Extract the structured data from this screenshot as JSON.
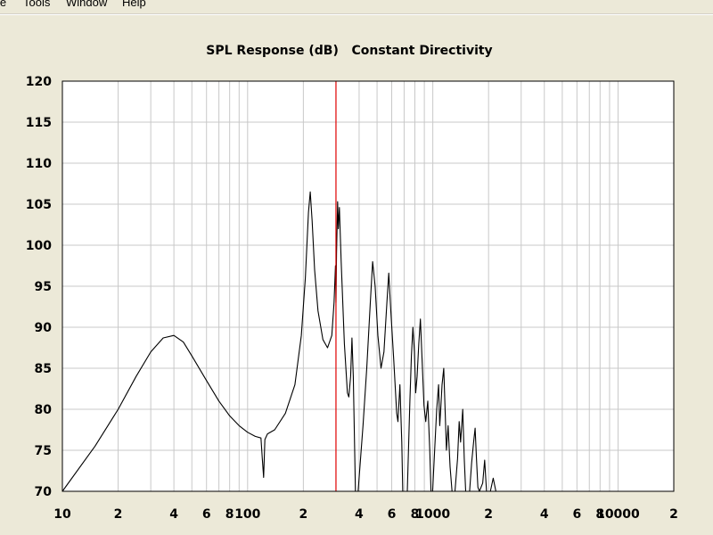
{
  "menu": {
    "items": [
      "le",
      "Tools",
      "Window",
      "Help"
    ]
  },
  "colors": {
    "background": "#ece9d8",
    "plot_background": "#ffffff",
    "grid": "#c8c8c8",
    "curve": "#000000",
    "marker": "#e00000"
  },
  "chart_data": {
    "type": "line",
    "title": "SPL Response (dB)   Constant Directivity",
    "xlabel": "",
    "ylabel": "",
    "x_scale": "log",
    "xlim": [
      10,
      20000
    ],
    "ylim": [
      70,
      120
    ],
    "grid": true,
    "yticks": [
      70,
      75,
      80,
      85,
      90,
      95,
      100,
      105,
      110,
      115,
      120
    ],
    "xtick_labels": [
      {
        "x": 10,
        "label": "10"
      },
      {
        "x": 20,
        "label": "2"
      },
      {
        "x": 40,
        "label": "4"
      },
      {
        "x": 60,
        "label": "6"
      },
      {
        "x": 80,
        "label": "8"
      },
      {
        "x": 100,
        "label": "100"
      },
      {
        "x": 200,
        "label": "2"
      },
      {
        "x": 400,
        "label": "4"
      },
      {
        "x": 600,
        "label": "6"
      },
      {
        "x": 800,
        "label": "8"
      },
      {
        "x": 1000,
        "label": "1000"
      },
      {
        "x": 2000,
        "label": "2"
      },
      {
        "x": 4000,
        "label": "4"
      },
      {
        "x": 6000,
        "label": "6"
      },
      {
        "x": 8000,
        "label": "8"
      },
      {
        "x": 10000,
        "label": "10000"
      },
      {
        "x": 20000,
        "label": "2"
      }
    ],
    "marker_x": 300,
    "series": [
      {
        "values": [
          [
            10,
            70
          ],
          [
            15,
            75.5
          ],
          [
            20,
            80
          ],
          [
            25,
            84
          ],
          [
            30,
            87
          ],
          [
            35,
            88.7
          ],
          [
            40,
            89
          ],
          [
            45,
            88.2
          ],
          [
            50,
            86.5
          ],
          [
            60,
            83.5
          ],
          [
            70,
            81
          ],
          [
            80,
            79.2
          ],
          [
            90,
            78
          ],
          [
            100,
            77.2
          ],
          [
            110,
            76.7
          ],
          [
            118,
            76.5
          ],
          [
            120,
            74
          ],
          [
            122,
            71.7
          ],
          [
            124,
            76.3
          ],
          [
            128,
            77
          ],
          [
            140,
            77.5
          ],
          [
            160,
            79.5
          ],
          [
            180,
            83
          ],
          [
            195,
            89
          ],
          [
            205,
            96
          ],
          [
            213,
            104
          ],
          [
            218,
            106.5
          ],
          [
            223,
            103
          ],
          [
            230,
            97
          ],
          [
            240,
            92
          ],
          [
            255,
            88.5
          ],
          [
            270,
            87.5
          ],
          [
            285,
            89
          ],
          [
            293,
            93
          ],
          [
            298,
            97.5
          ],
          [
            300,
            93
          ],
          [
            302,
            99
          ],
          [
            306,
            105.3
          ],
          [
            309,
            102
          ],
          [
            313,
            104.6
          ],
          [
            320,
            98
          ],
          [
            333,
            88
          ],
          [
            346,
            82
          ],
          [
            352,
            81.5
          ],
          [
            360,
            84
          ],
          [
            366,
            88.7
          ],
          [
            372,
            84
          ],
          [
            382,
            70
          ],
          [
            395,
            70
          ],
          [
            420,
            78
          ],
          [
            440,
            85
          ],
          [
            460,
            93
          ],
          [
            473,
            98
          ],
          [
            488,
            95
          ],
          [
            505,
            89
          ],
          [
            525,
            85
          ],
          [
            545,
            87
          ],
          [
            565,
            93
          ],
          [
            578,
            96.6
          ],
          [
            593,
            92
          ],
          [
            615,
            86
          ],
          [
            638,
            79.5
          ],
          [
            648,
            78.5
          ],
          [
            664,
            83
          ],
          [
            680,
            76
          ],
          [
            688,
            70
          ],
          [
            728,
            70
          ],
          [
            752,
            81
          ],
          [
            766,
            86.5
          ],
          [
            781,
            90
          ],
          [
            796,
            87
          ],
          [
            808,
            82
          ],
          [
            823,
            84
          ],
          [
            840,
            88
          ],
          [
            857,
            91
          ],
          [
            875,
            86
          ],
          [
            896,
            80.5
          ],
          [
            916,
            78.5
          ],
          [
            940,
            81
          ],
          [
            963,
            75
          ],
          [
            978,
            70
          ],
          [
            998,
            70
          ],
          [
            1033,
            77
          ],
          [
            1050,
            80
          ],
          [
            1074,
            83
          ],
          [
            1090,
            78
          ],
          [
            1103,
            80
          ],
          [
            1122,
            83
          ],
          [
            1146,
            85
          ],
          [
            1165,
            80
          ],
          [
            1185,
            75
          ],
          [
            1210,
            78
          ],
          [
            1240,
            73
          ],
          [
            1270,
            70
          ],
          [
            1317,
            70
          ],
          [
            1360,
            74
          ],
          [
            1388,
            78.5
          ],
          [
            1412,
            76
          ],
          [
            1450,
            80
          ],
          [
            1478,
            74
          ],
          [
            1504,
            70
          ],
          [
            1580,
            70
          ],
          [
            1620,
            73.5
          ],
          [
            1660,
            76
          ],
          [
            1693,
            77.7
          ],
          [
            1720,
            74
          ],
          [
            1751,
            70.5
          ],
          [
            1785,
            70
          ],
          [
            1860,
            71
          ],
          [
            1905,
            73.8
          ],
          [
            1950,
            70
          ],
          [
            2045,
            70
          ],
          [
            2120,
            71.6
          ],
          [
            2190,
            70
          ]
        ]
      }
    ]
  }
}
